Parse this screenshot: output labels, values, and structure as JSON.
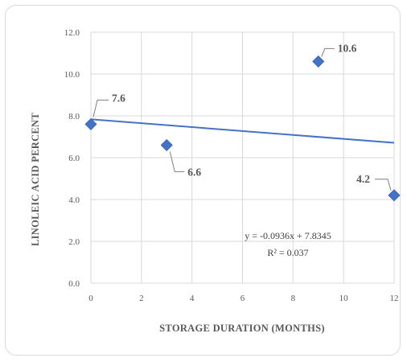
{
  "chart_data": {
    "type": "scatter",
    "title": "",
    "xlabel": "STORAGE  DURATION (MONTHS)",
    "ylabel": "LINOLEIC  ACID PERCENT",
    "xlim": [
      0,
      12
    ],
    "ylim": [
      0,
      12
    ],
    "x_ticks": [
      0,
      2,
      4,
      6,
      8,
      10,
      12
    ],
    "y_ticks": [
      "0.0",
      "2.0",
      "4.0",
      "6.0",
      "8.0",
      "10.0",
      "12.0"
    ],
    "grid": true,
    "points": [
      {
        "x": 0,
        "y": 7.6,
        "label": "7.6"
      },
      {
        "x": 3,
        "y": 6.6,
        "label": "6.6"
      },
      {
        "x": 9,
        "y": 10.6,
        "label": "10.6"
      },
      {
        "x": 12,
        "y": 4.2,
        "label": "4.2"
      }
    ],
    "trendline": {
      "type": "linear",
      "slope": -0.0936,
      "intercept": 7.8345,
      "equation": "y = -0.0936x + 7.8345",
      "r_squared": "R² = 0.037"
    },
    "colors": {
      "marker": "#4472C4",
      "trendline": "#4472C4",
      "grid": "#d9d9d9"
    }
  }
}
